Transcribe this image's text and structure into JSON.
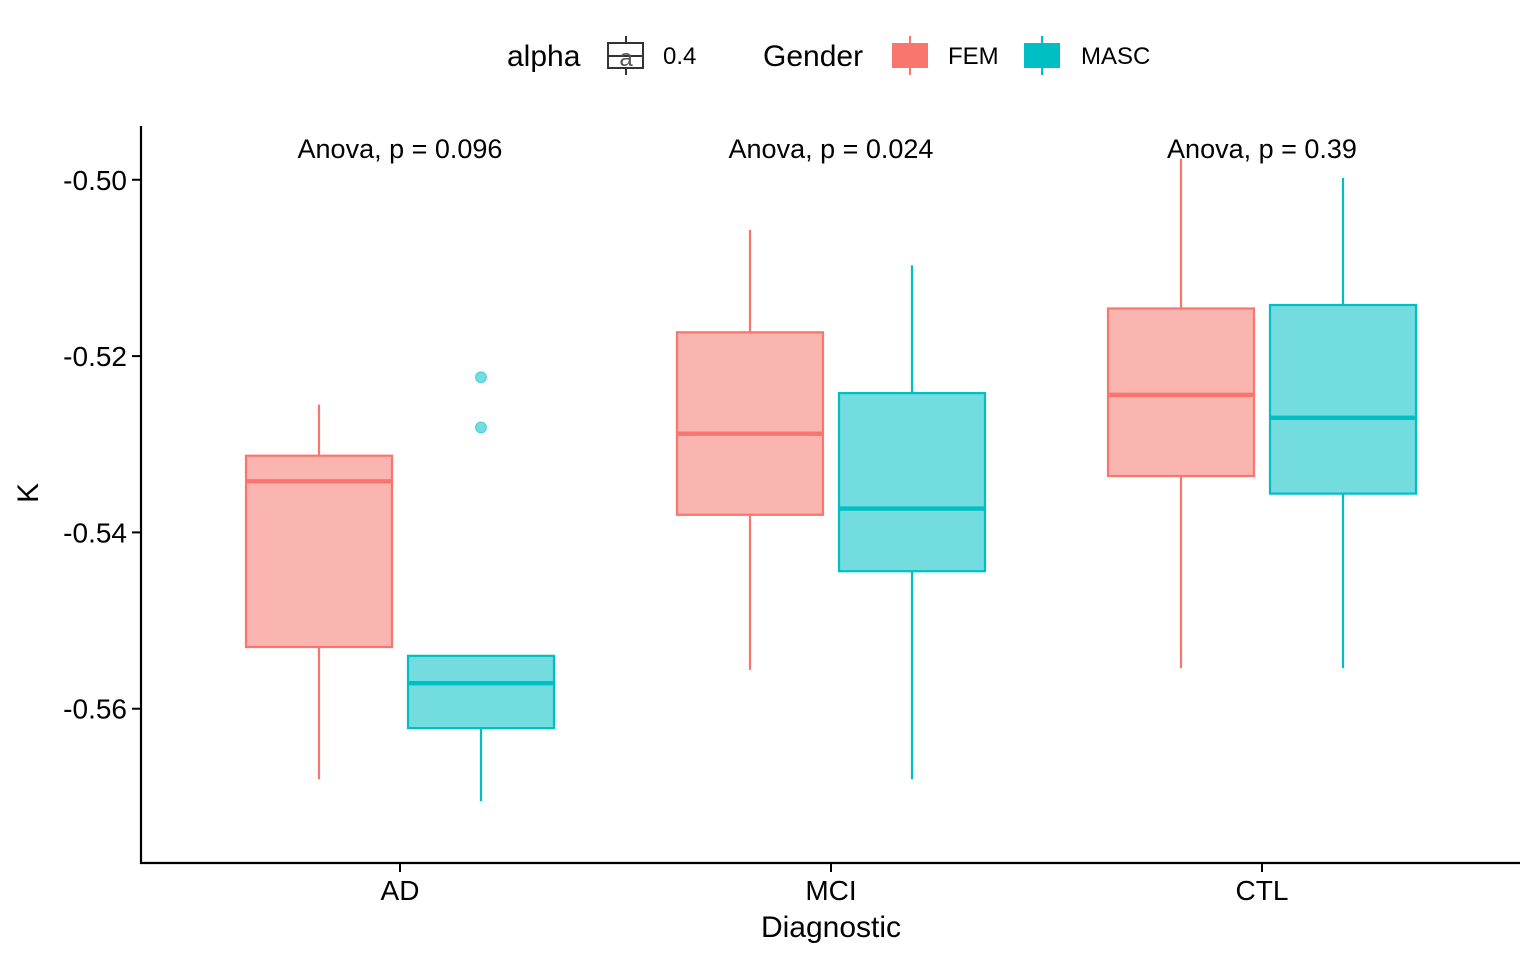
{
  "chart_data": {
    "type": "boxplot",
    "xlabel": "Diagnostic",
    "ylabel": "K",
    "categories": [
      "AD",
      "MCI",
      "CTL"
    ],
    "ylim": [
      -0.5775,
      -0.4939
    ],
    "yticks": [
      -0.5,
      -0.52,
      -0.54,
      -0.56
    ],
    "ytick_labels": [
      "-0.50",
      "-0.52",
      "-0.54",
      "-0.56"
    ],
    "grid": false,
    "legend": {
      "position": "top",
      "alpha_title": "alpha",
      "alpha_label": "0.4",
      "alpha_glyph": "a",
      "gender_title": "Gender"
    },
    "annotations": [
      "Anova, p = 0.096",
      "Anova, p = 0.024",
      "Anova, p = 0.39"
    ],
    "series": [
      {
        "name": "FEM",
        "color": "#F8766D",
        "fill": "#FAB5B1",
        "boxes": [
          {
            "category": "AD",
            "whisker_low": -0.568,
            "q1": -0.553,
            "median": -0.5342,
            "q3": -0.5313,
            "whisker_high": -0.5255,
            "outliers": []
          },
          {
            "category": "MCI",
            "whisker_low": -0.5556,
            "q1": -0.538,
            "median": -0.5288,
            "q3": -0.5173,
            "whisker_high": -0.5057,
            "outliers": []
          },
          {
            "category": "CTL",
            "whisker_low": -0.5554,
            "q1": -0.5336,
            "median": -0.5244,
            "q3": -0.5146,
            "whisker_high": -0.4976,
            "outliers": []
          }
        ]
      },
      {
        "name": "MASC",
        "color": "#00BFC4",
        "fill": "#72DCDE",
        "boxes": [
          {
            "category": "AD",
            "whisker_low": -0.5705,
            "q1": -0.5622,
            "median": -0.5571,
            "q3": -0.554,
            "whisker_high": -0.554,
            "outliers": [
              -0.5224,
              -0.5281
            ]
          },
          {
            "category": "MCI",
            "whisker_low": -0.568,
            "q1": -0.5444,
            "median": -0.5373,
            "q3": -0.5242,
            "whisker_high": -0.5097,
            "outliers": []
          },
          {
            "category": "CTL",
            "whisker_low": -0.5554,
            "q1": -0.5356,
            "median": -0.527,
            "q3": -0.5142,
            "whisker_high": -0.4998,
            "outliers": []
          }
        ]
      }
    ]
  }
}
